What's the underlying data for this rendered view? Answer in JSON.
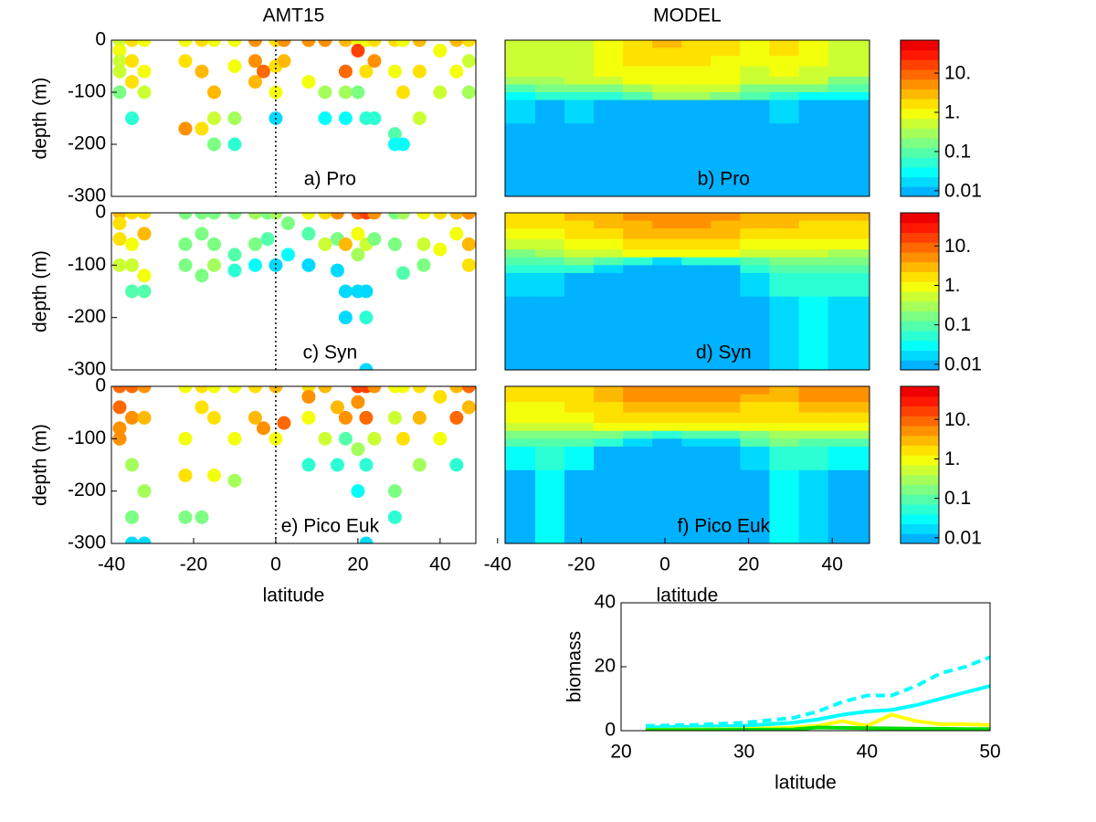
{
  "chart_data": [
    {
      "type": "scatter",
      "title": "AMT15",
      "ylabel": "depth (m)",
      "label": "a) Pro",
      "colormap": "jet",
      "levels": 16,
      "scale": "log",
      "clim": [
        0.0072,
        69
      ],
      "vline": 0,
      "xlim": [
        -40,
        48.7
      ],
      "ylim": [
        -300,
        0
      ],
      "yticks": [
        0,
        -100,
        -200,
        -300
      ],
      "x": [
        -38,
        -38,
        -38,
        -38,
        -38,
        -35,
        -35,
        -35,
        -35,
        -32,
        -32,
        -32,
        -22,
        -22,
        -22,
        -18,
        -18,
        -18,
        -15,
        -15,
        -15,
        -15,
        -10,
        -10,
        -10,
        -10,
        -5,
        -5,
        -5,
        -3,
        0,
        0,
        0,
        0,
        2,
        2,
        8,
        8,
        12,
        12,
        12,
        17,
        17,
        17,
        17,
        20,
        20,
        20,
        22,
        22,
        22,
        24,
        24,
        24,
        29,
        29,
        29,
        29,
        31,
        31,
        31,
        35,
        35,
        35,
        40,
        40,
        44,
        44,
        47,
        47,
        47
      ],
      "y": [
        0,
        -20,
        -40,
        -60,
        -100,
        0,
        -40,
        -80,
        -150,
        0,
        -60,
        -100,
        0,
        -40,
        -170,
        0,
        -60,
        -170,
        0,
        -100,
        -150,
        -200,
        0,
        -50,
        -150,
        -200,
        0,
        -40,
        -80,
        -60,
        0,
        -50,
        -100,
        -150,
        0,
        -40,
        0,
        -80,
        0,
        -100,
        -150,
        0,
        -60,
        -100,
        -150,
        0,
        -20,
        -100,
        0,
        -60,
        -150,
        0,
        -40,
        -150,
        0,
        -60,
        -180,
        -200,
        0,
        -100,
        -200,
        0,
        -60,
        -150,
        -20,
        -100,
        0,
        -60,
        0,
        -40,
        -100
      ],
      "values": [
        0.5,
        1,
        0.7,
        0.5,
        0.15,
        1.5,
        1.5,
        2,
        0.05,
        1,
        0.8,
        0.4,
        1,
        1.5,
        4,
        1.5,
        3,
        2,
        1,
        3,
        0.5,
        0.2,
        1,
        1,
        0.3,
        0.05,
        4,
        6,
        3,
        12,
        2,
        2,
        0.8,
        0.02,
        5,
        3,
        4,
        1,
        5,
        0.3,
        0.03,
        3,
        8,
        0.3,
        0.03,
        1,
        15,
        0.2,
        1,
        2,
        0.05,
        2,
        5,
        0.05,
        1.5,
        1,
        0.1,
        0.03,
        1,
        2,
        0.03,
        3,
        2,
        0.5,
        1,
        0.5,
        3,
        1,
        2,
        0.5,
        0.3
      ]
    },
    {
      "type": "heatmap",
      "title": "MODEL",
      "label": "b) Pro",
      "colormap": "jet",
      "levels": 16,
      "scale": "log",
      "clim": [
        0.0072,
        69
      ],
      "cticks": [
        {
          "value": 10,
          "label": "10."
        },
        {
          "value": 1,
          "label": "1."
        },
        0.1,
        0.01
      ],
      "xlim": [
        -38.2,
        48.9
      ],
      "ylim": [
        -300,
        0
      ],
      "xbins": [
        -38.2,
        -31,
        -24,
        -17,
        -10,
        -3,
        4,
        11,
        18,
        25,
        32,
        39,
        48.9
      ],
      "ybins": [
        0,
        -15,
        -30,
        -50,
        -70,
        -85,
        -100,
        -115,
        -160,
        -300
      ],
      "z": [
        [
          0.6,
          0.5,
          0.6,
          1.2,
          2,
          2.5,
          2,
          1.5,
          1.2,
          2,
          1,
          0.6
        ],
        [
          0.6,
          0.6,
          0.7,
          1.2,
          2,
          2,
          1.8,
          1.5,
          1,
          1.8,
          1,
          0.6
        ],
        [
          0.5,
          0.5,
          0.6,
          1,
          1.5,
          1.5,
          1.5,
          1.2,
          0.8,
          1.2,
          0.8,
          0.5
        ],
        [
          0.4,
          0.4,
          0.5,
          0.8,
          1,
          1.2,
          1.2,
          1,
          0.6,
          0.8,
          0.6,
          0.4
        ],
        [
          0.3,
          0.3,
          0.4,
          0.5,
          0.8,
          1,
          1,
          0.8,
          0.5,
          0.6,
          0.4,
          0.2
        ],
        [
          0.1,
          0.15,
          0.2,
          0.2,
          0.3,
          0.5,
          0.5,
          0.4,
          0.2,
          0.2,
          0.15,
          0.1
        ],
        [
          0.04,
          0.05,
          0.05,
          0.06,
          0.1,
          0.3,
          0.3,
          0.2,
          0.08,
          0.06,
          0.04,
          0.03
        ],
        [
          0.02,
          0.01,
          0.02,
          0.01,
          0.01,
          0.01,
          0.01,
          0.01,
          0.01,
          0.02,
          0.01,
          0.01
        ],
        [
          0.01,
          0.01,
          0.01,
          0.01,
          0.01,
          0.01,
          0.01,
          0.01,
          0.01,
          0.01,
          0.01,
          0.01
        ]
      ]
    },
    {
      "type": "scatter",
      "ylabel": "depth (m)",
      "label": "c) Syn",
      "colormap": "jet",
      "levels": 16,
      "scale": "log",
      "clim": [
        0.0072,
        69
      ],
      "vline": 0,
      "xlim": [
        -40,
        48.7
      ],
      "ylim": [
        -300,
        0
      ],
      "yticks": [
        0,
        -100,
        -200,
        -300
      ],
      "x": [
        -38,
        -38,
        -38,
        -38,
        -35,
        -35,
        -35,
        -35,
        -32,
        -32,
        -32,
        -32,
        -22,
        -22,
        -22,
        -18,
        -18,
        -18,
        -15,
        -15,
        -15,
        -10,
        -10,
        -10,
        -5,
        -5,
        -5,
        -2,
        -2,
        0,
        0,
        3,
        3,
        8,
        8,
        8,
        12,
        12,
        15,
        15,
        15,
        17,
        17,
        17,
        20,
        20,
        20,
        20,
        22,
        22,
        22,
        22,
        22,
        24,
        24,
        29,
        29,
        31,
        31,
        36,
        36,
        36,
        40,
        40,
        44,
        44,
        47,
        47,
        47
      ],
      "y": [
        0,
        -20,
        -50,
        -100,
        0,
        -60,
        -100,
        -150,
        0,
        -40,
        -120,
        -150,
        0,
        -60,
        -100,
        0,
        -40,
        -120,
        0,
        -60,
        -100,
        0,
        -80,
        -110,
        0,
        -60,
        -100,
        0,
        -50,
        0,
        -100,
        -20,
        -80,
        0,
        -40,
        -100,
        0,
        -60,
        0,
        -50,
        -110,
        -60,
        -150,
        -200,
        0,
        -40,
        -80,
        -150,
        0,
        -60,
        -150,
        -200,
        -300,
        0,
        -50,
        0,
        -60,
        0,
        -115,
        0,
        -60,
        -100,
        0,
        -70,
        0,
        -40,
        0,
        -60,
        -100
      ],
      "values": [
        3,
        2,
        2,
        0.5,
        2,
        1,
        0.5,
        0.1,
        1.5,
        3,
        1,
        0.1,
        0.2,
        0.2,
        0.2,
        0.15,
        0.2,
        0.2,
        0.15,
        0.2,
        0.3,
        0.2,
        0.1,
        0.05,
        0.3,
        0.2,
        0.03,
        0.2,
        0.1,
        0.3,
        0.02,
        0.2,
        0.03,
        1,
        0.1,
        0.02,
        2,
        0.5,
        5,
        0.2,
        0.02,
        3,
        0.02,
        0.02,
        10,
        1,
        0.3,
        0.02,
        15,
        0.5,
        0.02,
        0.05,
        0.02,
        5,
        0.2,
        0.2,
        0.2,
        0.3,
        0.1,
        1,
        0.5,
        0.2,
        2,
        1,
        3,
        1,
        5,
        3,
        2
      ]
    },
    {
      "type": "heatmap",
      "label": "d) Syn",
      "colormap": "jet",
      "levels": 16,
      "scale": "log",
      "clim": [
        0.0072,
        69
      ],
      "cticks": [
        {
          "value": 10,
          "label": "10."
        },
        {
          "value": 1,
          "label": "1."
        },
        0.1,
        0.01
      ],
      "xlim": [
        -38.2,
        48.9
      ],
      "ylim": [
        -300,
        0
      ],
      "xbins": [
        -38.2,
        -31,
        -24,
        -17,
        -10,
        -3,
        4,
        11,
        18,
        25,
        32,
        39,
        48.9
      ],
      "ybins": [
        0,
        -15,
        -30,
        -50,
        -70,
        -85,
        -100,
        -115,
        -160,
        -300
      ],
      "z": [
        [
          2,
          2,
          2.5,
          3,
          4,
          5,
          5,
          4,
          3,
          3,
          2.5,
          3
        ],
        [
          1.5,
          1.5,
          2,
          2.5,
          3,
          4,
          4,
          3,
          2.5,
          2.5,
          2,
          2
        ],
        [
          1,
          1,
          1.5,
          2,
          2.5,
          3,
          3,
          2.5,
          2,
          2,
          1.5,
          1.5
        ],
        [
          0.5,
          0.5,
          1,
          1,
          1.5,
          2,
          2,
          1.5,
          1,
          1,
          0.8,
          0.8
        ],
        [
          0.2,
          0.3,
          0.5,
          0.5,
          1,
          1,
          1,
          0.8,
          0.5,
          0.5,
          0.4,
          0.3
        ],
        [
          0.1,
          0.1,
          0.2,
          0.1,
          0.05,
          0.02,
          0.05,
          0.05,
          0.1,
          0.2,
          0.2,
          0.2
        ],
        [
          0.05,
          0.05,
          0.05,
          0.02,
          0.01,
          0.01,
          0.01,
          0.01,
          0.05,
          0.1,
          0.1,
          0.1
        ],
        [
          0.02,
          0.02,
          0.01,
          0.01,
          0.01,
          0.01,
          0.01,
          0.01,
          0.02,
          0.05,
          0.05,
          0.05
        ],
        [
          0.01,
          0.01,
          0.01,
          0.01,
          0.01,
          0.01,
          0.01,
          0.01,
          0.01,
          0.02,
          0.03,
          0.02
        ]
      ]
    },
    {
      "type": "scatter",
      "ylabel": "depth (m)",
      "xlabel": "latitude",
      "label": "e) Pico Euk",
      "colormap": "jet",
      "levels": 16,
      "scale": "log",
      "clim": [
        0.0072,
        69
      ],
      "vline": 0,
      "xlim": [
        -40,
        48.7
      ],
      "ylim": [
        -300,
        0
      ],
      "yticks": [
        0,
        -100,
        -200,
        -300
      ],
      "xticks": [
        -40,
        -20,
        0,
        20,
        40
      ],
      "x": [
        -38,
        -38,
        -38,
        -38,
        -35,
        -35,
        -35,
        -35,
        -35,
        -32,
        -32,
        -32,
        -32,
        -22,
        -22,
        -22,
        -22,
        -18,
        -18,
        -18,
        -15,
        -15,
        -15,
        -10,
        -10,
        -10,
        -5,
        -5,
        -3,
        0,
        0,
        2,
        8,
        8,
        8,
        8,
        12,
        12,
        15,
        15,
        17,
        17,
        20,
        20,
        20,
        20,
        22,
        22,
        22,
        22,
        24,
        24,
        29,
        29,
        29,
        29,
        31,
        31,
        35,
        35,
        35,
        40,
        40,
        44,
        44,
        44,
        47,
        47
      ],
      "y": [
        0,
        -40,
        -80,
        -100,
        0,
        -60,
        -150,
        -250,
        -300,
        0,
        -60,
        -200,
        -300,
        0,
        -100,
        -170,
        -250,
        0,
        -40,
        -250,
        0,
        -60,
        -170,
        0,
        -100,
        -180,
        0,
        -60,
        -80,
        0,
        -100,
        -70,
        0,
        -20,
        -60,
        -150,
        0,
        -100,
        -40,
        -150,
        -60,
        -100,
        0,
        -30,
        -120,
        -200,
        0,
        -60,
        -150,
        -300,
        0,
        -100,
        0,
        -60,
        -200,
        -250,
        0,
        -100,
        0,
        -60,
        -150,
        -20,
        -100,
        0,
        -60,
        -150,
        0,
        -40
      ],
      "values": [
        10,
        12,
        5,
        4,
        8,
        5,
        0.3,
        0.2,
        0.02,
        4,
        3,
        0.3,
        0.02,
        1,
        1,
        2,
        0.2,
        1.5,
        2,
        0.2,
        1,
        1.5,
        1,
        1,
        1,
        0.3,
        2,
        3,
        5,
        3,
        1,
        12,
        1.5,
        5,
        1,
        0.05,
        3,
        0.5,
        3,
        0.05,
        4,
        0.1,
        15,
        5,
        0.3,
        0.03,
        20,
        8,
        0.05,
        0.02,
        4,
        0.5,
        1,
        0.5,
        0.2,
        0.05,
        1,
        2,
        2,
        3,
        0.3,
        1.5,
        1,
        3,
        8,
        0.05,
        8,
        3
      ]
    },
    {
      "type": "heatmap",
      "xlabel": "latitude",
      "label": "f) Pico Euk",
      "colormap": "jet",
      "levels": 16,
      "scale": "log",
      "clim": [
        0.0072,
        69
      ],
      "cticks": [
        {
          "value": 10,
          "label": "10."
        },
        {
          "value": 1,
          "label": "1."
        },
        0.1,
        0.01
      ],
      "xlim": [
        -38.2,
        48.9
      ],
      "ylim": [
        -300,
        0
      ],
      "xticks": [
        -40,
        -20,
        0,
        20,
        40
      ],
      "xbins": [
        -38.2,
        -31,
        -24,
        -17,
        -10,
        -3,
        4,
        11,
        18,
        25,
        32,
        39,
        48.9
      ],
      "ybins": [
        0,
        -15,
        -30,
        -50,
        -70,
        -85,
        -100,
        -115,
        -160,
        -300
      ],
      "z": [
        [
          1.5,
          1.5,
          2,
          3,
          5,
          6,
          6,
          5,
          4,
          3,
          5,
          6
        ],
        [
          1.5,
          1.5,
          2,
          3,
          4,
          5,
          5,
          4,
          3,
          3,
          4,
          5
        ],
        [
          1.2,
          1.2,
          1.5,
          2,
          3,
          3,
          3,
          3,
          2,
          2,
          3,
          3
        ],
        [
          0.8,
          0.8,
          1,
          1.5,
          2,
          2,
          2,
          2,
          1.5,
          1.5,
          1.5,
          1.5
        ],
        [
          0.4,
          0.4,
          0.5,
          0.8,
          1,
          1,
          1,
          1,
          0.8,
          0.8,
          0.8,
          0.8
        ],
        [
          0.2,
          0.2,
          0.2,
          0.2,
          0.1,
          0.05,
          0.1,
          0.1,
          0.2,
          0.3,
          0.3,
          0.3
        ],
        [
          0.1,
          0.1,
          0.1,
          0.05,
          0.02,
          0.01,
          0.02,
          0.02,
          0.1,
          0.15,
          0.1,
          0.1
        ],
        [
          0.03,
          0.05,
          0.03,
          0.01,
          0.01,
          0.01,
          0.01,
          0.01,
          0.02,
          0.05,
          0.05,
          0.03
        ],
        [
          0.01,
          0.03,
          0.01,
          0.01,
          0.01,
          0.01,
          0.01,
          0.01,
          0.01,
          0.03,
          0.02,
          0.01
        ]
      ]
    },
    {
      "type": "line",
      "xlabel": "latitude",
      "ylabel": "biomass",
      "xlim": [
        20,
        50
      ],
      "ylim": [
        0,
        40
      ],
      "xticks": [
        20,
        30,
        40,
        50
      ],
      "yticks": [
        0,
        20,
        40
      ],
      "x": [
        22,
        26,
        30,
        34,
        36,
        38,
        40,
        42,
        44,
        46,
        48,
        50
      ],
      "series": [
        {
          "color": "#00ffff",
          "dash": true,
          "values": [
            1.5,
            1.8,
            2.5,
            4,
            6,
            9,
            11,
            11,
            14,
            18,
            20,
            23
          ]
        },
        {
          "color": "#00ffff",
          "dash": false,
          "values": [
            1,
            1.2,
            1.5,
            2.5,
            3.5,
            5,
            6,
            6.5,
            8,
            10,
            12,
            14
          ]
        },
        {
          "color": "#ffff00",
          "dash": false,
          "values": [
            0.3,
            0.4,
            0.5,
            1,
            1.5,
            3,
            1.5,
            5,
            3,
            2,
            2,
            1.8
          ]
        },
        {
          "color": "#00dd00",
          "dash": false,
          "values": [
            0.2,
            0.2,
            0.3,
            0.4,
            1,
            0.9,
            0.8,
            0.7,
            0.6,
            0.6,
            0.5,
            0.5
          ]
        }
      ]
    }
  ]
}
